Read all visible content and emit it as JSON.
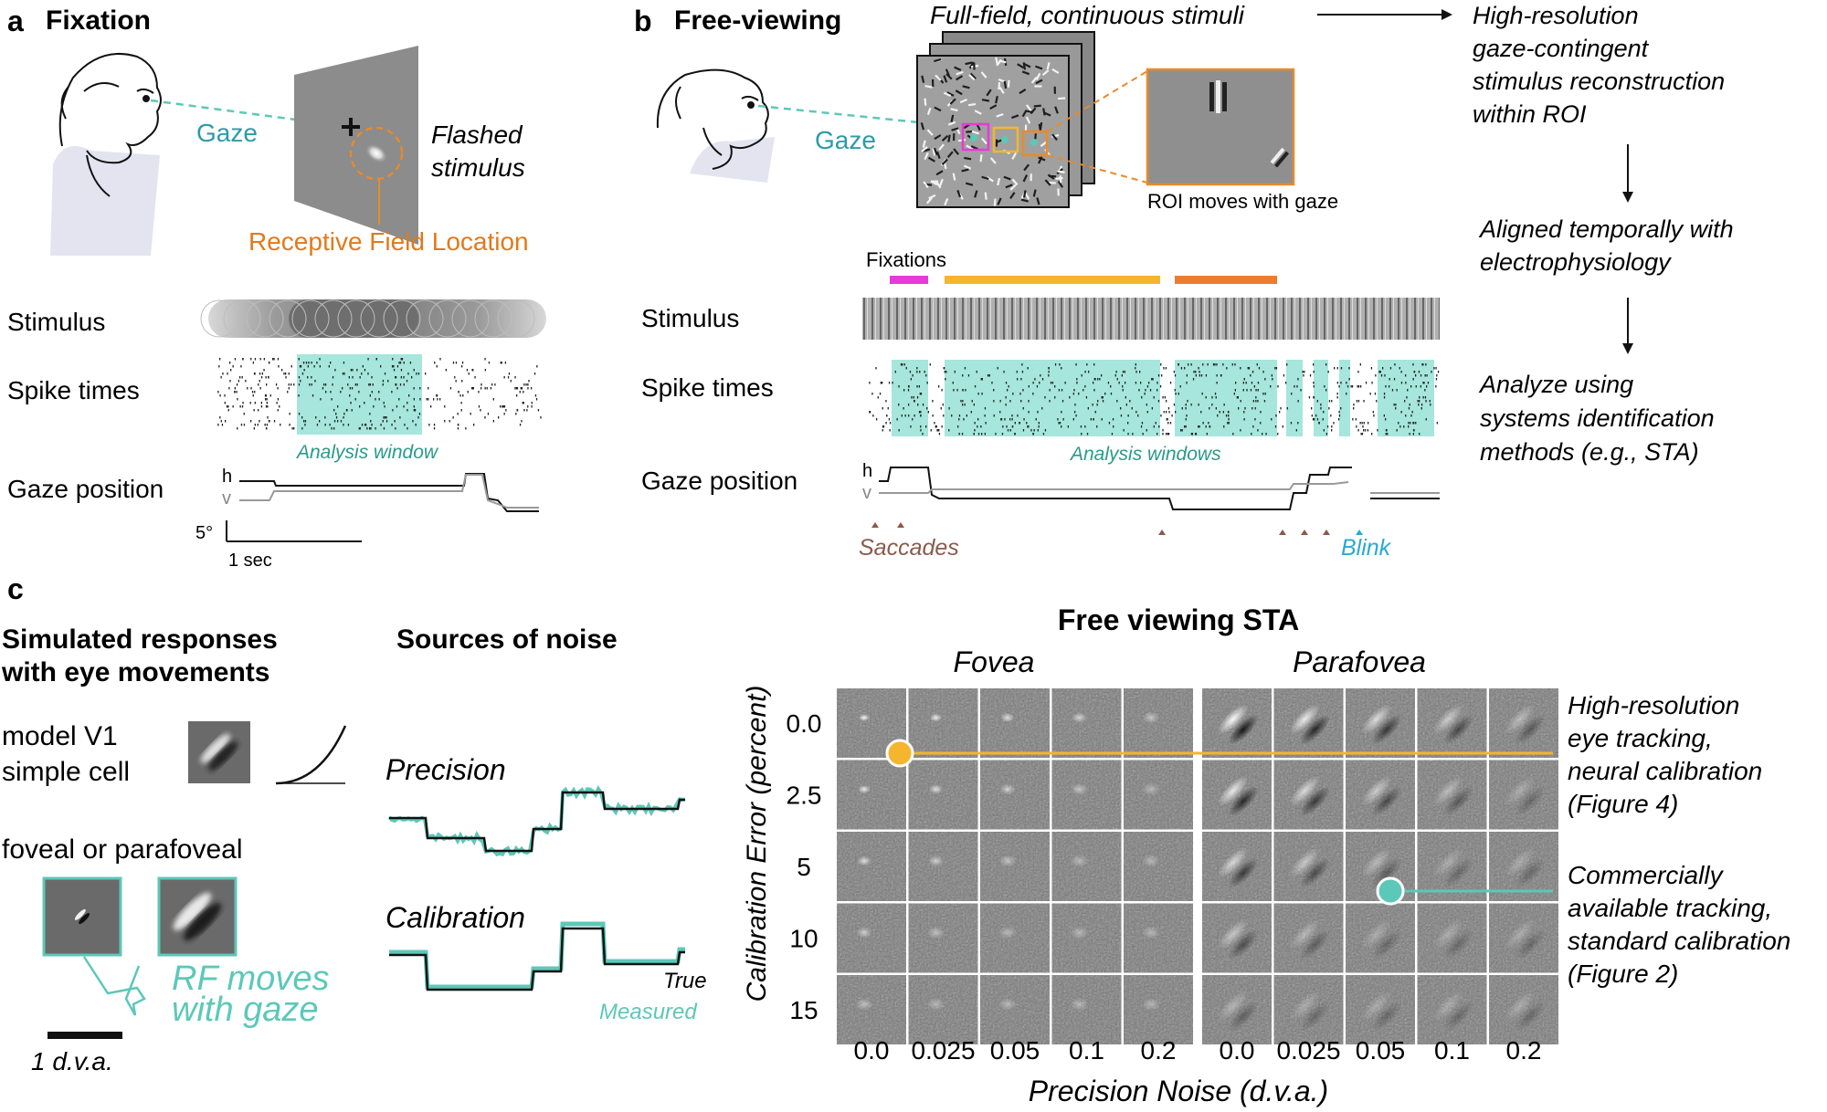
{
  "panel_a": {
    "letter": "a",
    "title": "Fixation",
    "gaze": "Gaze",
    "flashed_line1": "Flashed",
    "flashed_line2": "stimulus",
    "rf_location": "Receptive Field Location",
    "row_stimulus": "Stimulus",
    "row_spikes": "Spike times",
    "row_gaze": "Gaze position",
    "analysis_window": "Analysis window",
    "trace_h": "h",
    "trace_v": "v",
    "scale_deg": "5°",
    "scale_time": "1 sec"
  },
  "panel_b": {
    "letter": "b",
    "title": "Free-viewing",
    "subtitle": "Full-field, continuous stimuli",
    "gaze": "Gaze",
    "roi_caption": "ROI moves with gaze",
    "fixations": "Fixations",
    "row_stimulus": "Stimulus",
    "row_spikes": "Spike times",
    "row_gaze": "Gaze position",
    "analysis_windows": "Analysis windows",
    "trace_h": "h",
    "trace_v": "v",
    "saccades": "Saccades",
    "blink": "Blink",
    "flow": [
      [
        "High-resolution",
        "gaze-contingent",
        "stimulus reconstruction",
        "within ROI"
      ],
      [
        "Aligned temporally with",
        "electrophysiology"
      ],
      [
        "Analyze using",
        "systems identification",
        "methods (e.g., STA)"
      ]
    ]
  },
  "panel_c": {
    "letter": "c",
    "sim_title_1": "Simulated responses",
    "sim_title_2": "with eye movements",
    "model_1": "model V1",
    "model_2": "simple cell",
    "foveal": "foveal or parafoveal",
    "rf_moves_1": "RF moves",
    "rf_moves_2": "with gaze",
    "scale": "1 d.v.a.",
    "noise_title": "Sources of noise",
    "precision": "Precision",
    "calibration": "Calibration",
    "true_label": "True",
    "measured_label": "Measured",
    "sta_title": "Free viewing STA",
    "fovea": "Fovea",
    "parafovea": "Parafovea",
    "ylabel": "Calibration Error (percent)",
    "xlabel": "Precision Noise (d.v.a.)",
    "row_labels": [
      "0.0",
      "2.5",
      "5",
      "10",
      "15"
    ],
    "col_labels": [
      "0.0",
      "0.025",
      "0.05",
      "0.1",
      "0.2"
    ],
    "note_high": [
      "High-resolution",
      "eye tracking,",
      "neural calibration",
      "(Figure 4)"
    ],
    "note_comm": [
      "Commercially",
      "available tracking,",
      "standard calibration",
      "(Figure 2)"
    ]
  },
  "colors": {
    "teal": "#5cc8b8",
    "teal_dark": "#2a9a8a",
    "orange": "#e98a2a",
    "gold": "#f5b52e",
    "magenta": "#e83ad8",
    "brown": "#8b5a4a",
    "blink_blue": "#2aaad0"
  }
}
